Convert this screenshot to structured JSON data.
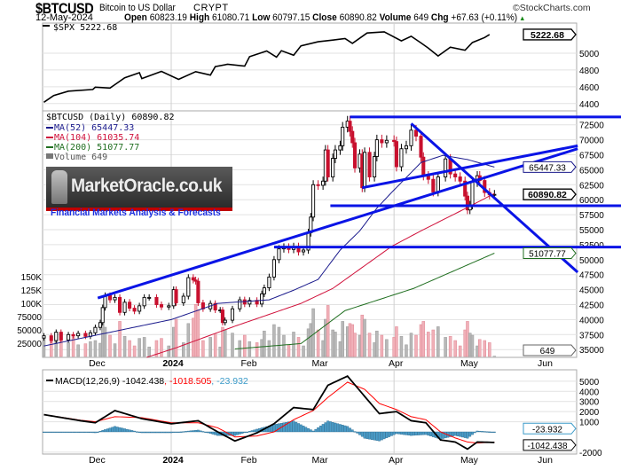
{
  "header": {
    "symbol": "$BTCUSD",
    "name": "Bitcoin to US Dollar",
    "exchange": "CRYPT",
    "copyright": "©StockCharts.com",
    "date": "12-May-2024",
    "open_label": "Open",
    "open": "60823.19",
    "high_label": "High",
    "high": "61080.71",
    "low_label": "Low",
    "low": "60797.15",
    "close_label": "Close",
    "close": "60890.82",
    "volume_label": "Volume",
    "volume": "649",
    "chg_label": "Chg",
    "chg": "+67.63 (+0.11%)",
    "chg_icon": "triangle-up-icon"
  },
  "watermark": {
    "brand": "MarketOracle.co.uk",
    "tagline": "Financial Markets Analysis & Forecasts"
  },
  "colors": {
    "ma52": "#1a1a8c",
    "ma104": "#d0103a",
    "ma200": "#1f6e1f",
    "trendline": "#0a14e6",
    "up": "#000000",
    "down": "#c8102e",
    "macd": "#000000",
    "signal": "#ff0000",
    "hist": "#4a9cc8"
  },
  "chart_data": [
    {
      "type": "line",
      "panel": "spx",
      "legend": "$SPX 5222.68",
      "last_value": "5222.68",
      "y_ticks": [
        4400,
        4600,
        4800,
        5000
      ],
      "ylim": [
        4340,
        5400
      ],
      "points": [
        [
          "2023-11-10",
          4415
        ],
        [
          "2023-11-14",
          4496
        ],
        [
          "2023-11-20",
          4547
        ],
        [
          "2023-11-30",
          4568
        ],
        [
          "2023-12-01",
          4595
        ],
        [
          "2023-12-07",
          4585
        ],
        [
          "2023-12-13",
          4707
        ],
        [
          "2023-12-19",
          4768
        ],
        [
          "2023-12-20",
          4698
        ],
        [
          "2023-12-28",
          4783
        ],
        [
          "2024-01-04",
          4688
        ],
        [
          "2024-01-11",
          4780
        ],
        [
          "2024-01-17",
          4739
        ],
        [
          "2024-01-19",
          4840
        ],
        [
          "2024-01-24",
          4868
        ],
        [
          "2024-01-31",
          4846
        ],
        [
          "2024-02-02",
          4959
        ],
        [
          "2024-02-09",
          5027
        ],
        [
          "2024-02-13",
          4953
        ],
        [
          "2024-02-15",
          5030
        ],
        [
          "2024-02-20",
          4976
        ],
        [
          "2024-02-23",
          5088
        ],
        [
          "2024-03-01",
          5137
        ],
        [
          "2024-03-07",
          5157
        ],
        [
          "2024-03-12",
          5175
        ],
        [
          "2024-03-15",
          5117
        ],
        [
          "2024-03-21",
          5241
        ],
        [
          "2024-03-28",
          5254
        ],
        [
          "2024-04-04",
          5147
        ],
        [
          "2024-04-08",
          5202
        ],
        [
          "2024-04-12",
          5123
        ],
        [
          "2024-04-15",
          5061
        ],
        [
          "2024-04-19",
          4967
        ],
        [
          "2024-04-24",
          5071
        ],
        [
          "2024-04-30",
          5035
        ],
        [
          "2024-05-03",
          5127
        ],
        [
          "2024-05-08",
          5187
        ],
        [
          "2024-05-10",
          5222.68
        ]
      ]
    },
    {
      "type": "candlestick",
      "panel": "price",
      "legend": "$BTCUSD (Daily) 60890.82",
      "last_value": "60890.82",
      "y_ticks": [
        35000,
        37500,
        40000,
        42500,
        45000,
        47500,
        50000,
        52500,
        55000,
        57500,
        60000,
        62500,
        65000,
        67500,
        70000,
        72500
      ],
      "volume_ticks": [
        [
          "25000",
          25000
        ],
        [
          "50000",
          50000
        ],
        [
          "75000",
          75000
        ],
        [
          "100K",
          100000
        ],
        [
          "125K",
          125000
        ],
        [
          "150K",
          150000
        ]
      ],
      "volume_legend": "Volume 649",
      "volume_last": "649",
      "columns": [
        "date",
        "close",
        "volume"
      ],
      "bars": [
        [
          "2023-11-10",
          37300,
          38000
        ],
        [
          "2023-11-13",
          36500,
          30000
        ],
        [
          "2023-11-15",
          37900,
          36000
        ],
        [
          "2023-11-17",
          36600,
          34000
        ],
        [
          "2023-11-20",
          37500,
          26000
        ],
        [
          "2023-11-22",
          37300,
          40000
        ],
        [
          "2023-11-24",
          37700,
          22000
        ],
        [
          "2023-11-27",
          37200,
          24000
        ],
        [
          "2023-11-29",
          37800,
          28000
        ],
        [
          "2023-12-01",
          38700,
          30000
        ],
        [
          "2023-12-03",
          39500,
          25000
        ],
        [
          "2023-12-04",
          42000,
          62000
        ],
        [
          "2023-12-05",
          44000,
          55000
        ],
        [
          "2023-12-07",
          43300,
          40000
        ],
        [
          "2023-12-09",
          43700,
          24000
        ],
        [
          "2023-12-11",
          41200,
          66000
        ],
        [
          "2023-12-13",
          42900,
          38000
        ],
        [
          "2023-12-15",
          41900,
          30000
        ],
        [
          "2023-12-17",
          41400,
          20000
        ],
        [
          "2023-12-19",
          42300,
          34000
        ],
        [
          "2023-12-21",
          43700,
          36000
        ],
        [
          "2023-12-23",
          43700,
          18000
        ],
        [
          "2023-12-26",
          42500,
          30000
        ],
        [
          "2023-12-28",
          42100,
          34000
        ],
        [
          "2023-12-31",
          42300,
          20000
        ],
        [
          "2024-01-02",
          45000,
          55000
        ],
        [
          "2024-01-03",
          42800,
          70000
        ],
        [
          "2024-01-06",
          43900,
          26000
        ],
        [
          "2024-01-08",
          47000,
          62000
        ],
        [
          "2024-01-10",
          46600,
          72000
        ],
        [
          "2024-01-11",
          46400,
          98000
        ],
        [
          "2024-01-12",
          42800,
          88000
        ],
        [
          "2024-01-14",
          41800,
          30000
        ],
        [
          "2024-01-17",
          42700,
          36000
        ],
        [
          "2024-01-19",
          41600,
          42000
        ],
        [
          "2024-01-21",
          41600,
          18000
        ],
        [
          "2024-01-22",
          39500,
          55000
        ],
        [
          "2024-01-23",
          39900,
          50000
        ],
        [
          "2024-01-26",
          41800,
          44000
        ],
        [
          "2024-01-29",
          43300,
          30000
        ],
        [
          "2024-01-31",
          42600,
          40000
        ],
        [
          "2024-02-02",
          43200,
          28000
        ],
        [
          "2024-02-05",
          42600,
          26000
        ],
        [
          "2024-02-07",
          44300,
          32000
        ],
        [
          "2024-02-08",
          45300,
          48000
        ],
        [
          "2024-02-10",
          47100,
          30000
        ],
        [
          "2024-02-12",
          50000,
          60000
        ],
        [
          "2024-02-14",
          51800,
          55000
        ],
        [
          "2024-02-16",
          52100,
          40000
        ],
        [
          "2024-02-18",
          51700,
          22000
        ],
        [
          "2024-02-20",
          52200,
          46000
        ],
        [
          "2024-02-22",
          51300,
          36000
        ],
        [
          "2024-02-24",
          51600,
          20000
        ],
        [
          "2024-02-26",
          54500,
          52000
        ],
        [
          "2024-02-27",
          57100,
          62000
        ],
        [
          "2024-02-28",
          62500,
          90000
        ],
        [
          "2024-03-01",
          62400,
          50000
        ],
        [
          "2024-03-03",
          63100,
          30000
        ],
        [
          "2024-03-04",
          68300,
          70000
        ],
        [
          "2024-03-05",
          63800,
          96000
        ],
        [
          "2024-03-07",
          66900,
          50000
        ],
        [
          "2024-03-08",
          68300,
          46000
        ],
        [
          "2024-03-10",
          69000,
          28000
        ],
        [
          "2024-03-11",
          72100,
          66000
        ],
        [
          "2024-03-13",
          73100,
          56000
        ],
        [
          "2024-03-14",
          71400,
          62000
        ],
        [
          "2024-03-15",
          69500,
          60000
        ],
        [
          "2024-03-16",
          65300,
          44000
        ],
        [
          "2024-03-18",
          67600,
          40000
        ],
        [
          "2024-03-19",
          62000,
          78000
        ],
        [
          "2024-03-20",
          67900,
          70000
        ],
        [
          "2024-03-22",
          63800,
          44000
        ],
        [
          "2024-03-24",
          67200,
          26000
        ],
        [
          "2024-03-25",
          70000,
          48000
        ],
        [
          "2024-03-27",
          69500,
          40000
        ],
        [
          "2024-03-29",
          69900,
          32000
        ],
        [
          "2024-04-01",
          69700,
          36000
        ],
        [
          "2024-04-02",
          65500,
          56000
        ],
        [
          "2024-04-04",
          68500,
          38000
        ],
        [
          "2024-04-06",
          69000,
          22000
        ],
        [
          "2024-04-08",
          71600,
          44000
        ],
        [
          "2024-04-10",
          70600,
          40000
        ],
        [
          "2024-04-12",
          67100,
          60000
        ],
        [
          "2024-04-13",
          64000,
          66000
        ],
        [
          "2024-04-15",
          63400,
          46000
        ],
        [
          "2024-04-17",
          61300,
          50000
        ],
        [
          "2024-04-19",
          63800,
          56000
        ],
        [
          "2024-04-22",
          66800,
          36000
        ],
        [
          "2024-04-24",
          64300,
          38000
        ],
        [
          "2024-04-26",
          63800,
          30000
        ],
        [
          "2024-04-28",
          63100,
          20000
        ],
        [
          "2024-04-30",
          60600,
          50000
        ],
        [
          "2024-05-01",
          58300,
          66000
        ],
        [
          "2024-05-02",
          59100,
          44000
        ],
        [
          "2024-05-03",
          62900,
          40000
        ],
        [
          "2024-05-05",
          64000,
          20000
        ],
        [
          "2024-05-06",
          63200,
          32000
        ],
        [
          "2024-05-08",
          61200,
          30000
        ],
        [
          "2024-05-10",
          60800,
          26000
        ],
        [
          "2024-05-12",
          60890.82,
          649
        ]
      ],
      "moving_averages": [
        {
          "name": "MA(52) 65447.33",
          "last": "65447.33",
          "color_key": "ma52",
          "points": [
            [
              "2023-11-10",
              35600
            ],
            [
              "2024-01-01",
              40000
            ],
            [
              "2024-01-20",
              42700
            ],
            [
              "2024-02-10",
              43300
            ],
            [
              "2024-02-20",
              44900
            ],
            [
              "2024-03-01",
              46700
            ],
            [
              "2024-03-10",
              51600
            ],
            [
              "2024-03-18",
              54800
            ],
            [
              "2024-03-25",
              58600
            ],
            [
              "2024-03-31",
              61200
            ],
            [
              "2024-04-12",
              66200
            ],
            [
              "2024-04-21",
              67400
            ],
            [
              "2024-05-01",
              66700
            ],
            [
              "2024-05-12",
              65447.33
            ]
          ]
        },
        {
          "name": "MA(104) 61035.74",
          "last": "61035.74",
          "color_key": "ma104",
          "points": [
            [
              "2023-12-22",
              33700
            ],
            [
              "2024-01-03",
              35300
            ],
            [
              "2024-01-27",
              38900
            ],
            [
              "2024-02-23",
              42700
            ],
            [
              "2024-03-07",
              45200
            ],
            [
              "2024-03-31",
              52200
            ],
            [
              "2024-04-12",
              54800
            ],
            [
              "2024-04-30",
              58500
            ],
            [
              "2024-05-12",
              61035.74
            ]
          ]
        },
        {
          "name": "MA(200) 51077.77",
          "last": "51077.77",
          "color_key": "ma200",
          "points": [
            [
              "2024-01-27",
              35100
            ],
            [
              "2024-02-23",
              36000
            ],
            [
              "2024-03-12",
              41500
            ],
            [
              "2024-04-09",
              45200
            ],
            [
              "2024-05-12",
              51077.77
            ]
          ]
        }
      ],
      "trendlines": [
        {
          "kind": "horizontal",
          "from": "2024-03-14",
          "price": 73800
        },
        {
          "kind": "horizontal",
          "from": "2024-03-06",
          "price": 59000
        },
        {
          "kind": "horizontal",
          "from": "2024-02-12",
          "price": 52100
        },
        {
          "kind": "segment",
          "p1": [
            "2023-12-02",
            43600
          ],
          "p2": [
            "2024-06-15",
            68500
          ]
        },
        {
          "kind": "segment",
          "p1": [
            "2024-03-19",
            62000
          ],
          "p2": [
            "2024-06-15",
            69000
          ]
        },
        {
          "kind": "segment",
          "p1": [
            "2024-04-08",
            72700
          ],
          "p2": [
            "2024-06-15",
            47900
          ]
        }
      ]
    },
    {
      "type": "macd",
      "panel": "macd",
      "legend_name": "MACD(12,26,9)",
      "legend_macd": "-1042.438",
      "legend_signal": "-1018.505",
      "legend_hist": "-23.932",
      "y_ticks": [
        -2000,
        1000,
        2000,
        3000,
        4000,
        5000
      ],
      "ylim": [
        -2200,
        6000
      ],
      "columns": [
        "date",
        "macd",
        "signal"
      ],
      "points": [
        [
          "2023-11-10",
          1700,
          1700
        ],
        [
          "2023-11-25",
          1100,
          1150
        ],
        [
          "2023-12-01",
          900,
          1000
        ],
        [
          "2023-12-09",
          2100,
          1500
        ],
        [
          "2023-12-20",
          1300,
          1400
        ],
        [
          "2024-01-01",
          800,
          900
        ],
        [
          "2024-01-12",
          1100,
          900
        ],
        [
          "2024-01-20",
          0,
          400
        ],
        [
          "2024-01-27",
          -900,
          -500
        ],
        [
          "2024-02-05",
          -100,
          -400
        ],
        [
          "2024-02-12",
          800,
          0
        ],
        [
          "2024-02-20",
          2400,
          1200
        ],
        [
          "2024-02-28",
          2200,
          2100
        ],
        [
          "2024-03-05",
          4600,
          3400
        ],
        [
          "2024-03-13",
          5500,
          4900
        ],
        [
          "2024-03-20",
          3500,
          4200
        ],
        [
          "2024-03-26",
          1800,
          2800
        ],
        [
          "2024-04-02",
          2000,
          2200
        ],
        [
          "2024-04-08",
          1100,
          1500
        ],
        [
          "2024-04-14",
          900,
          1200
        ],
        [
          "2024-04-20",
          -800,
          0
        ],
        [
          "2024-04-26",
          -1000,
          -600
        ],
        [
          "2024-05-01",
          -1700,
          -1000
        ],
        [
          "2024-05-05",
          -1000,
          -1100
        ],
        [
          "2024-05-12",
          -1042.438,
          -1018.505
        ]
      ]
    }
  ],
  "x_axis": {
    "labels": [
      [
        "Dec",
        "2023-12-01"
      ],
      [
        "2024",
        "2024-01-01"
      ],
      [
        "Feb",
        "2024-02-01"
      ],
      [
        "Mar",
        "2024-03-01"
      ],
      [
        "Apr",
        "2024-04-01"
      ],
      [
        "May",
        "2024-05-01"
      ],
      [
        "Jun",
        "2024-06-01"
      ]
    ]
  }
}
